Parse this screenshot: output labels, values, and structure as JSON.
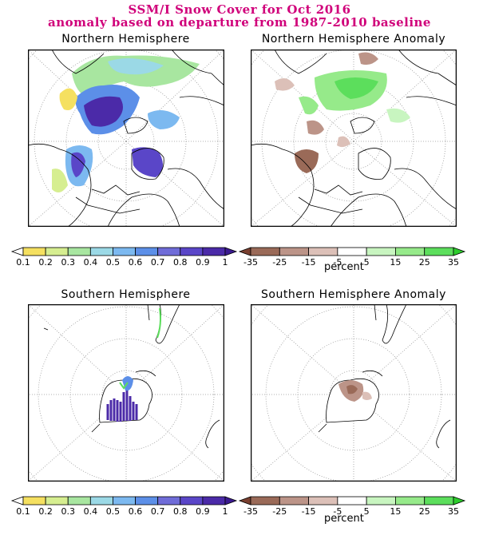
{
  "header": {
    "line1": "SSM/I Snow Cover for Oct 2016",
    "line2": "anomaly based on departure from 1987-2010 baseline"
  },
  "panels": {
    "nh": {
      "title": "Northern Hemisphere"
    },
    "nh_anom": {
      "title": "Northern Hemisphere Anomaly"
    },
    "sh": {
      "title": "Southern Hemisphere"
    },
    "sh_anom": {
      "title": "Southern Hemisphere Anomaly"
    }
  },
  "colorbars": {
    "cover": {
      "labels": [
        "0.1",
        "0.2",
        "0.3",
        "0.4",
        "0.5",
        "0.6",
        "0.7",
        "0.8",
        "0.9",
        "1"
      ],
      "colors": [
        "#ffffff",
        "#f5e060",
        "#d6ee90",
        "#a8e6a0",
        "#9bd9e6",
        "#7cb9f0",
        "#5c8fe8",
        "#6f6cd8",
        "#5a46c8",
        "#4b2aa8",
        "#3b1a90"
      ]
    },
    "anomaly": {
      "labels": [
        "-35",
        "-25",
        "-15",
        "-5",
        "5",
        "15",
        "25",
        "35"
      ],
      "colors": [
        "#7a4030",
        "#9a6a58",
        "#bc9488",
        "#dcc0b8",
        "#ffffff",
        "#c8f5c0",
        "#96ea8a",
        "#5cde5c",
        "#2ccc2c"
      ],
      "unit": "percent"
    }
  }
}
